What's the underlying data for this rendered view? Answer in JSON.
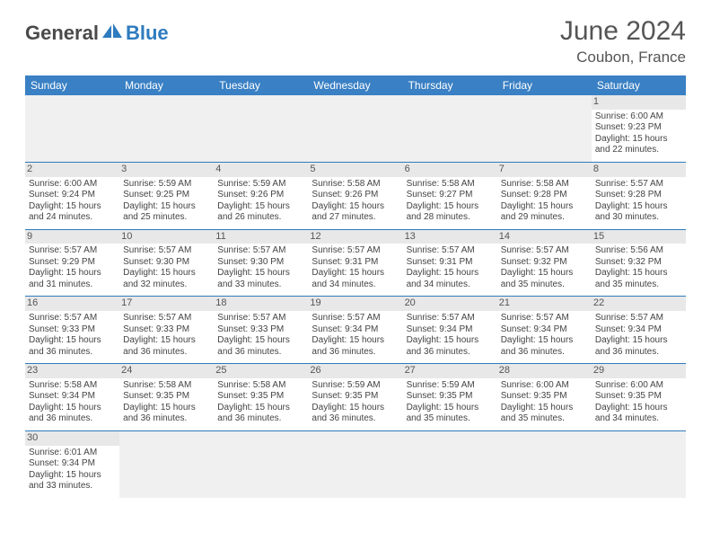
{
  "logo": {
    "general": "General",
    "blue": "Blue"
  },
  "title": "June 2024",
  "location": "Coubon, France",
  "colors": {
    "header_bg": "#3a80c4",
    "border": "#2f7bbf",
    "daynum_bg": "#e8e8e8",
    "empty_bg": "#f0f0f0",
    "text": "#444444",
    "title_color": "#555555"
  },
  "weekdays": [
    "Sunday",
    "Monday",
    "Tuesday",
    "Wednesday",
    "Thursday",
    "Friday",
    "Saturday"
  ],
  "weeks": [
    [
      null,
      null,
      null,
      null,
      null,
      null,
      {
        "d": "1",
        "sr": "6:00 AM",
        "ss": "9:23 PM",
        "dl": "15 hours and 22 minutes."
      }
    ],
    [
      {
        "d": "2",
        "sr": "6:00 AM",
        "ss": "9:24 PM",
        "dl": "15 hours and 24 minutes."
      },
      {
        "d": "3",
        "sr": "5:59 AM",
        "ss": "9:25 PM",
        "dl": "15 hours and 25 minutes."
      },
      {
        "d": "4",
        "sr": "5:59 AM",
        "ss": "9:26 PM",
        "dl": "15 hours and 26 minutes."
      },
      {
        "d": "5",
        "sr": "5:58 AM",
        "ss": "9:26 PM",
        "dl": "15 hours and 27 minutes."
      },
      {
        "d": "6",
        "sr": "5:58 AM",
        "ss": "9:27 PM",
        "dl": "15 hours and 28 minutes."
      },
      {
        "d": "7",
        "sr": "5:58 AM",
        "ss": "9:28 PM",
        "dl": "15 hours and 29 minutes."
      },
      {
        "d": "8",
        "sr": "5:57 AM",
        "ss": "9:28 PM",
        "dl": "15 hours and 30 minutes."
      }
    ],
    [
      {
        "d": "9",
        "sr": "5:57 AM",
        "ss": "9:29 PM",
        "dl": "15 hours and 31 minutes."
      },
      {
        "d": "10",
        "sr": "5:57 AM",
        "ss": "9:30 PM",
        "dl": "15 hours and 32 minutes."
      },
      {
        "d": "11",
        "sr": "5:57 AM",
        "ss": "9:30 PM",
        "dl": "15 hours and 33 minutes."
      },
      {
        "d": "12",
        "sr": "5:57 AM",
        "ss": "9:31 PM",
        "dl": "15 hours and 34 minutes."
      },
      {
        "d": "13",
        "sr": "5:57 AM",
        "ss": "9:31 PM",
        "dl": "15 hours and 34 minutes."
      },
      {
        "d": "14",
        "sr": "5:57 AM",
        "ss": "9:32 PM",
        "dl": "15 hours and 35 minutes."
      },
      {
        "d": "15",
        "sr": "5:56 AM",
        "ss": "9:32 PM",
        "dl": "15 hours and 35 minutes."
      }
    ],
    [
      {
        "d": "16",
        "sr": "5:57 AM",
        "ss": "9:33 PM",
        "dl": "15 hours and 36 minutes."
      },
      {
        "d": "17",
        "sr": "5:57 AM",
        "ss": "9:33 PM",
        "dl": "15 hours and 36 minutes."
      },
      {
        "d": "18",
        "sr": "5:57 AM",
        "ss": "9:33 PM",
        "dl": "15 hours and 36 minutes."
      },
      {
        "d": "19",
        "sr": "5:57 AM",
        "ss": "9:34 PM",
        "dl": "15 hours and 36 minutes."
      },
      {
        "d": "20",
        "sr": "5:57 AM",
        "ss": "9:34 PM",
        "dl": "15 hours and 36 minutes."
      },
      {
        "d": "21",
        "sr": "5:57 AM",
        "ss": "9:34 PM",
        "dl": "15 hours and 36 minutes."
      },
      {
        "d": "22",
        "sr": "5:57 AM",
        "ss": "9:34 PM",
        "dl": "15 hours and 36 minutes."
      }
    ],
    [
      {
        "d": "23",
        "sr": "5:58 AM",
        "ss": "9:34 PM",
        "dl": "15 hours and 36 minutes."
      },
      {
        "d": "24",
        "sr": "5:58 AM",
        "ss": "9:35 PM",
        "dl": "15 hours and 36 minutes."
      },
      {
        "d": "25",
        "sr": "5:58 AM",
        "ss": "9:35 PM",
        "dl": "15 hours and 36 minutes."
      },
      {
        "d": "26",
        "sr": "5:59 AM",
        "ss": "9:35 PM",
        "dl": "15 hours and 36 minutes."
      },
      {
        "d": "27",
        "sr": "5:59 AM",
        "ss": "9:35 PM",
        "dl": "15 hours and 35 minutes."
      },
      {
        "d": "28",
        "sr": "6:00 AM",
        "ss": "9:35 PM",
        "dl": "15 hours and 35 minutes."
      },
      {
        "d": "29",
        "sr": "6:00 AM",
        "ss": "9:35 PM",
        "dl": "15 hours and 34 minutes."
      }
    ],
    [
      {
        "d": "30",
        "sr": "6:01 AM",
        "ss": "9:34 PM",
        "dl": "15 hours and 33 minutes."
      },
      null,
      null,
      null,
      null,
      null,
      null
    ]
  ]
}
